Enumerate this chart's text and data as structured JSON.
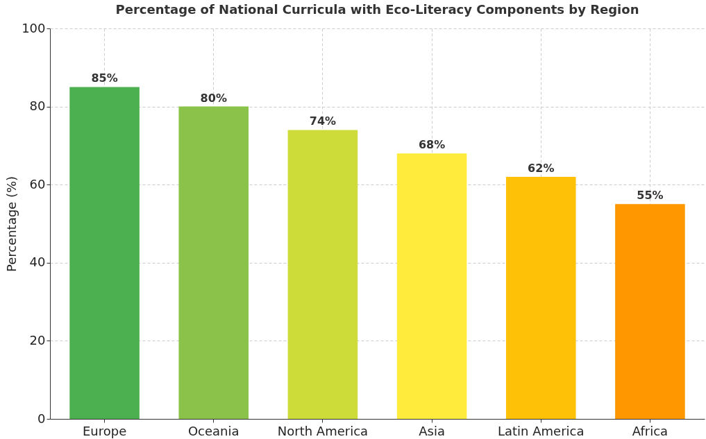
{
  "chart_data": {
    "type": "bar",
    "title": "Percentage of National Curricula with Eco-Literacy Components by Region",
    "ylabel": "Percentage (%)",
    "categories": [
      "Europe",
      "Oceania",
      "North America",
      "Asia",
      "Latin America",
      "Africa"
    ],
    "values": [
      85,
      80,
      74,
      68,
      62,
      55
    ],
    "colors": [
      "#4caf50",
      "#8bc34a",
      "#cddc39",
      "#ffeb3b",
      "#ffc107",
      "#ff9800"
    ],
    "value_labels": [
      "85%",
      "80%",
      "74%",
      "68%",
      "62%",
      "55%"
    ],
    "ylim": [
      0,
      100
    ],
    "yticks": [
      0,
      20,
      40,
      60,
      80,
      100
    ],
    "grid": true
  }
}
